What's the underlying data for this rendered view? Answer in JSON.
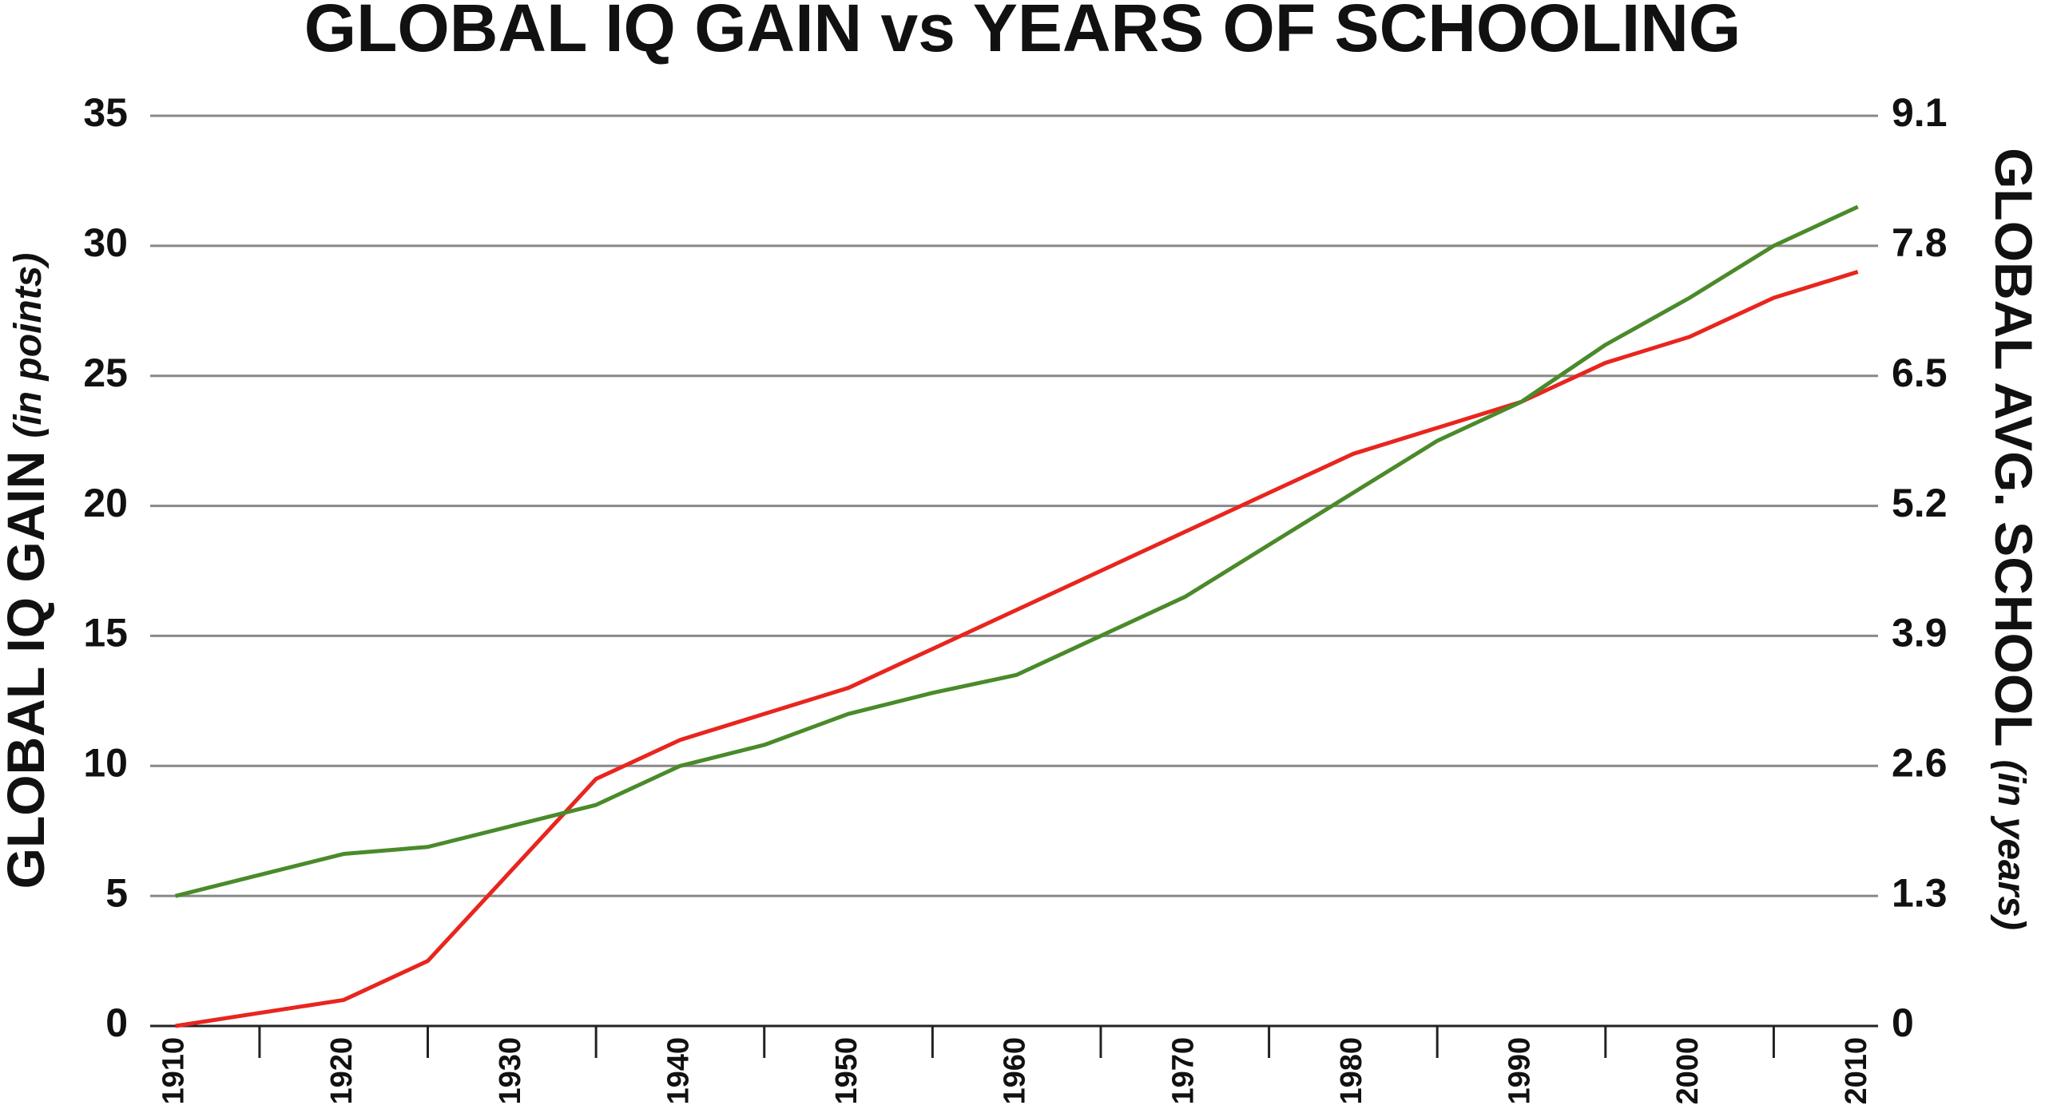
{
  "chart_data": {
    "type": "line",
    "title": "GLOBAL IQ GAIN vs YEARS OF SCHOOLING",
    "ylabel": {
      "text": "GLOBAL IQ GAIN",
      "note": "(in points)"
    },
    "y2label": {
      "text": "GLOBAL AVG. SCHOOL",
      "note": "(in years)"
    },
    "x": [
      1910,
      1915,
      1920,
      1925,
      1930,
      1935,
      1940,
      1945,
      1950,
      1955,
      1960,
      1965,
      1970,
      1975,
      1980,
      1985,
      1990,
      1995,
      2000,
      2005,
      2010
    ],
    "series": [
      {
        "color": "#e8251e",
        "values": [
          0,
          0.5,
          1,
          2.5,
          6,
          9.5,
          11,
          12,
          13,
          14.5,
          16,
          17.5,
          19,
          20.5,
          22,
          23,
          24,
          25.5,
          26.5,
          28,
          29
        ]
      },
      {
        "color": "#4a8a2a",
        "axis": "y2",
        "values": [
          1.3,
          1.51,
          1.72,
          1.79,
          2.0,
          2.21,
          2.6,
          2.81,
          3.12,
          3.33,
          3.51,
          3.9,
          4.29,
          4.81,
          5.33,
          5.85,
          6.24,
          6.81,
          7.28,
          7.8,
          8.19
        ]
      }
    ],
    "xlim": [
      1908.5,
      2011.2
    ],
    "xticks": [
      1910,
      1920,
      1930,
      1940,
      1950,
      1960,
      1970,
      1980,
      1990,
      2000,
      2010
    ],
    "xminorticks": [
      1915,
      1925,
      1935,
      1945,
      1955,
      1965,
      1975,
      1985,
      1995,
      2005
    ],
    "ylim": [
      0,
      35
    ],
    "yticks": [
      0,
      5,
      10,
      15,
      20,
      25,
      30,
      35
    ],
    "y2lim": [
      0,
      9.1
    ],
    "y2ticks": [
      0,
      1.3,
      2.6,
      3.9,
      5.2,
      6.5,
      7.8,
      9.1
    ],
    "grid": true
  }
}
